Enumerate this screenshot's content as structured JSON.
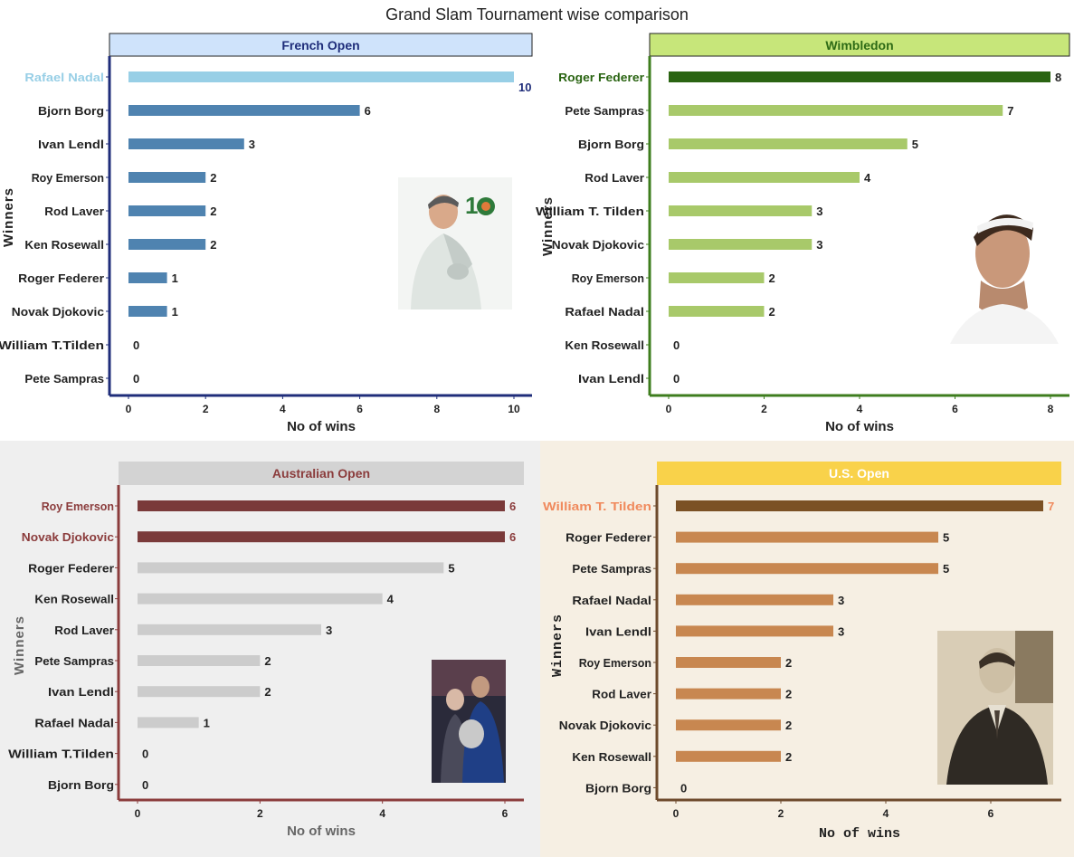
{
  "title": "Grand Slam Tournament wise comparison",
  "colors": {
    "french_bar": "#4f83b0",
    "french_highlight": "#98cfe6",
    "french_axis": "#1f2d7a",
    "french_header_bg": "#cfe3fb",
    "french_header_text": "#1f2d7a",
    "wimbledon_bar": "#a8c96a",
    "wimbledon_highlight": "#2a6412",
    "wimbledon_axis": "#3e7d1e",
    "wimbledon_header_bg": "#c7e67a",
    "wimbledon_header_text": "#2e6b16",
    "australian_bar": "#cccccc",
    "australian_highlight": "#7a3a3a",
    "australian_axis": "#8b3c3c",
    "australian_header_bg": "#d3d3d3",
    "australian_header_text": "#8b3c3c",
    "us_bar": "#c88750",
    "us_highlight": "#7b5125",
    "us_axis": "#6d4a2c",
    "us_header_bg": "#f9d24a",
    "us_header_text": "#ffffff",
    "us_highlight_label": "#f08a5d"
  },
  "chart_data": [
    {
      "type": "bar",
      "orientation": "horizontal",
      "title": "French Open",
      "xlabel": "No of wins",
      "ylabel": "Winners",
      "xlim": [
        0,
        10
      ],
      "xticks": [
        0,
        2,
        4,
        6,
        8,
        10
      ],
      "categories": [
        "Rafael Nadal",
        "Bjorn Borg",
        "Ivan Lendl",
        "Roy Emerson",
        "Rod Laver",
        "Ken Rosewall",
        "Roger Federer",
        "Novak Djokovic",
        "William T.Tilden",
        "Pete Sampras"
      ],
      "values": [
        10,
        6,
        3,
        2,
        2,
        2,
        1,
        1,
        0,
        0
      ],
      "highlight": [
        "Rafael Nadal"
      ],
      "image": "player-photo"
    },
    {
      "type": "bar",
      "orientation": "horizontal",
      "title": "Wimbledon",
      "xlabel": "No of wins",
      "ylabel": "Winners",
      "xlim": [
        0,
        8
      ],
      "xticks": [
        0,
        2,
        4,
        6,
        8
      ],
      "categories": [
        "Roger Federer",
        "Pete Sampras",
        "Bjorn Borg",
        "Rod Laver",
        "William T. Tilden",
        "Novak Djokovic",
        "Roy Emerson",
        "Rafael Nadal",
        "Ken Rosewall",
        "Ivan Lendl"
      ],
      "values": [
        8,
        7,
        5,
        4,
        3,
        3,
        2,
        2,
        0,
        0
      ],
      "highlight": [
        "Roger Federer"
      ],
      "image": "player-photo"
    },
    {
      "type": "bar",
      "orientation": "horizontal",
      "title": "Australian Open",
      "xlabel": "No of wins",
      "ylabel": "Winners",
      "xlim": [
        0,
        6
      ],
      "xticks": [
        0,
        2,
        4,
        6
      ],
      "categories": [
        "Roy Emerson",
        "Novak Djokovic",
        "Roger Federer",
        "Ken Rosewall",
        "Rod Laver",
        "Pete Sampras",
        "Ivan Lendl",
        "Rafael Nadal",
        "William T.Tilden",
        "Bjorn Borg"
      ],
      "values": [
        6,
        6,
        5,
        4,
        3,
        2,
        2,
        1,
        0,
        0
      ],
      "highlight": [
        "Roy Emerson",
        "Novak Djokovic"
      ],
      "image": "player-photo"
    },
    {
      "type": "bar",
      "orientation": "horizontal",
      "title": "U.S. Open",
      "xlabel": "No of wins",
      "ylabel": "Winners",
      "xlim": [
        0,
        7
      ],
      "xticks": [
        0,
        2,
        4,
        6
      ],
      "categories": [
        "William T. Tilden",
        "Roger Federer",
        "Pete Sampras",
        "Rafael Nadal",
        "Ivan Lendl",
        "Roy Emerson",
        "Rod Laver",
        "Novak Djokovic",
        "Ken Rosewall",
        "Bjorn Borg"
      ],
      "values": [
        7,
        5,
        5,
        3,
        3,
        2,
        2,
        2,
        2,
        0
      ],
      "highlight": [
        "William T. Tilden"
      ],
      "image": "player-photo"
    }
  ]
}
